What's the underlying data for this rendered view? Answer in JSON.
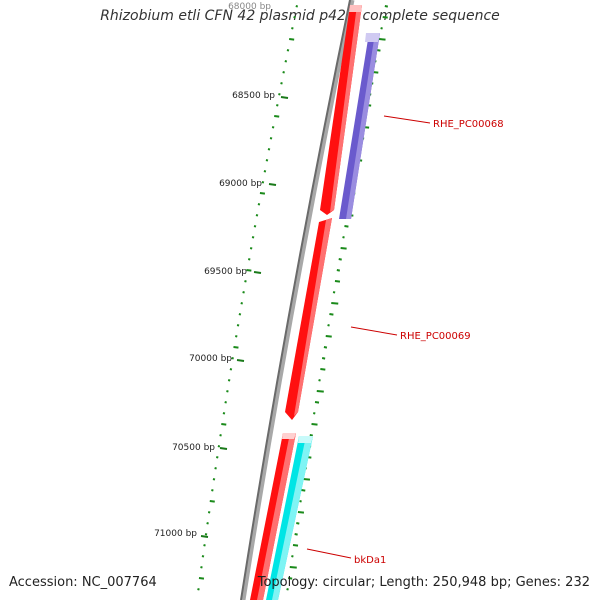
{
  "title": "Rhizobium etli CFN 42 plasmid p42c, complete sequence",
  "footer": {
    "accession": "Accession: NC_007764",
    "summary": "Topology: circular; Length: 250,948 bp; Genes: 232"
  },
  "colors": {
    "backbone": "#7a7a7a",
    "forward_gene": "#ff0000",
    "reverse_gene_purple": "#6a5acd",
    "reverse_gene_cyan": "#00e5e5",
    "gc_ticks": "#1a8a1a",
    "gene_label": "#cc0000",
    "tick_label": "#222222"
  },
  "ticks": [
    {
      "label": "68500 bp"
    },
    {
      "label": "69000 bp"
    },
    {
      "label": "69500 bp"
    },
    {
      "label": "70000 bp"
    },
    {
      "label": "70500 bp"
    },
    {
      "label": "71000 bp"
    }
  ],
  "genes": [
    {
      "label": "RHE_PC00068",
      "strand": "reverse",
      "color": "purple"
    },
    {
      "label": "RHE_PC00069",
      "strand": "forward",
      "color": "red"
    },
    {
      "label": "bkDa1",
      "strand": "reverse",
      "color": "cyan"
    }
  ]
}
